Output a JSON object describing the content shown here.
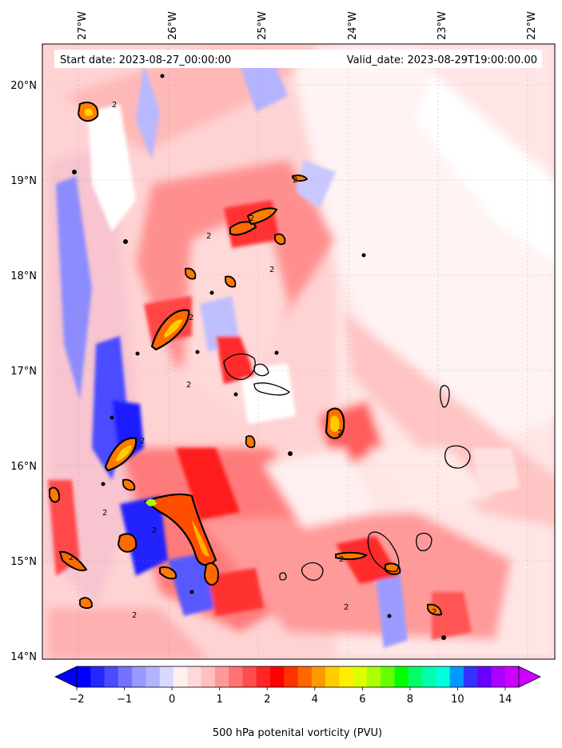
{
  "map": {
    "start_date": "Start date: 2023-08-27_00:00:00",
    "valid_date": "Valid_date: 2023-08-29T19:00:00.00",
    "lon_labels": [
      "27°W",
      "26°W",
      "25°W",
      "24°W",
      "23°W",
      "22°W"
    ],
    "lat_labels": [
      "20°N",
      "19°N",
      "18°N",
      "17°N",
      "16°N",
      "15°N",
      "14°N"
    ],
    "lon_range": [
      -27.35,
      -21.95
    ],
    "lat_range": [
      13.95,
      20.4
    ],
    "contour_level": "2"
  },
  "colorbar": {
    "title": "500 hPa potenital vorticity (PVU)",
    "tick_labels": [
      "−2",
      "−1",
      "0",
      "1",
      "2",
      "4",
      "6",
      "8",
      "10",
      "14"
    ],
    "colors": [
      "#0000ff",
      "#2626ff",
      "#4c4cff",
      "#7373ff",
      "#9999ff",
      "#b3b3ff",
      "#d9d9ff",
      "#fff0f0",
      "#ffd9d9",
      "#ffbfbf",
      "#ff9999",
      "#ff7373",
      "#ff4d4d",
      "#ff2626",
      "#ff0000",
      "#ff3300",
      "#ff6600",
      "#ff9900",
      "#ffcc00",
      "#ffee00",
      "#ddff00",
      "#aaff00",
      "#66ff00",
      "#00ff00",
      "#00ff66",
      "#00ffaa",
      "#00ffdd",
      "#0099ff",
      "#3333ff",
      "#6600ff",
      "#aa00ff",
      "#cc00ff"
    ]
  }
}
